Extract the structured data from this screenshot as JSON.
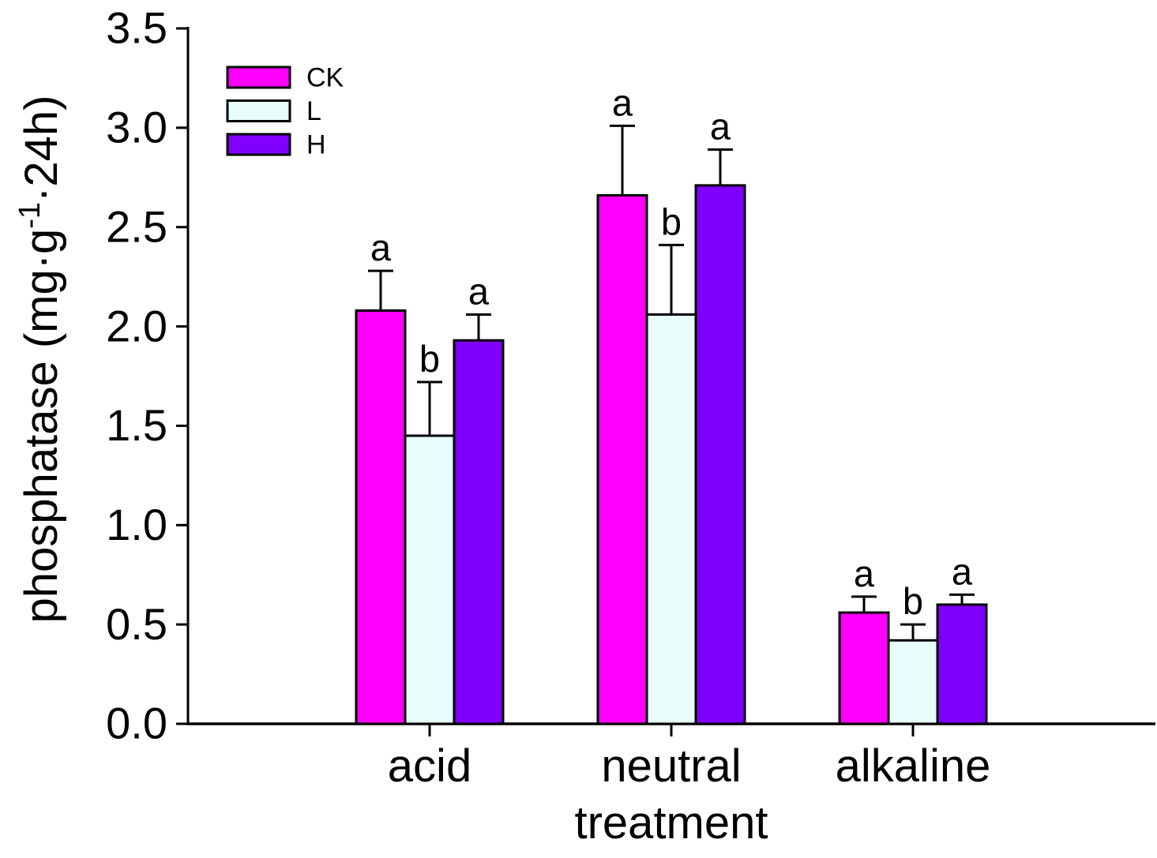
{
  "chart_data": {
    "type": "bar",
    "title": "",
    "xlabel": "treatment",
    "ylabel": "phosphatase (mg·g⁻¹·24h)",
    "ylabel_rich": [
      {
        "text": "phosphatase (mg·g",
        "sup": false
      },
      {
        "text": "-1",
        "sup": true
      },
      {
        "text": "·24h)",
        "sup": false
      }
    ],
    "categories": [
      "acid",
      "neutral",
      "alkaline"
    ],
    "series": [
      {
        "name": "CK",
        "color": "#FF00FF",
        "values": [
          2.08,
          2.66,
          0.56
        ],
        "errors_plus": [
          0.2,
          0.35,
          0.08
        ],
        "sig_letters": [
          "a",
          "a",
          "a"
        ]
      },
      {
        "name": "L",
        "color": "#E8FCFC",
        "values": [
          1.45,
          2.06,
          0.42
        ],
        "errors_plus": [
          0.27,
          0.35,
          0.08
        ],
        "sig_letters": [
          "b",
          "b",
          "b"
        ]
      },
      {
        "name": "H",
        "color": "#7F00FF",
        "values": [
          1.93,
          2.71,
          0.6
        ],
        "errors_plus": [
          0.13,
          0.18,
          0.05
        ],
        "sig_letters": [
          "a",
          "a",
          "a"
        ]
      }
    ],
    "ylim": [
      0.0,
      3.5
    ],
    "ytick_step": 0.5,
    "ytick_labels": [
      "0.0",
      "0.5",
      "1.0",
      "1.5",
      "2.0",
      "2.5",
      "3.0",
      "3.5"
    ],
    "legend": {
      "position": "top-left",
      "entries": [
        "CK",
        "L",
        "H"
      ]
    },
    "grid": false,
    "bar_outline_color": "#000000",
    "axis_color": "#000000",
    "error_bar_color": "#000000",
    "background_color": "#FFFFFF"
  }
}
